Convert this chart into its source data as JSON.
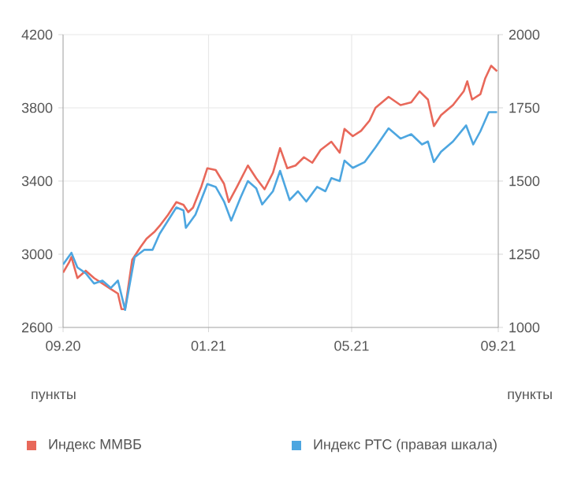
{
  "chart_data": {
    "type": "line",
    "ylabel": "пункты",
    "y2label": "пункты",
    "xlim": [
      "2020-09-01",
      "2021-09-01"
    ],
    "xticks": [
      {
        "value": "2020-09-01",
        "label": "09.20"
      },
      {
        "value": "2021-01-01",
        "label": "01.21"
      },
      {
        "value": "2021-05-01",
        "label": "05.21"
      },
      {
        "value": "2021-09-01",
        "label": "09.21"
      }
    ],
    "ylim": [
      2600,
      4200
    ],
    "yticks": [
      2600,
      3000,
      3400,
      3800,
      4200
    ],
    "y2lim": [
      1000,
      2000
    ],
    "y2ticks": [
      1000,
      1250,
      1500,
      1750,
      2000
    ],
    "grid": true,
    "legend": "bottom",
    "line_style": "solid",
    "marker": "none",
    "series": [
      {
        "name": "Индекс ММВБ",
        "color": "#e8685a",
        "x": [
          "2020-09-01",
          "2020-09-06",
          "2020-09-08",
          "2020-09-13",
          "2020-09-20",
          "2020-09-27",
          "2020-10-04",
          "2020-10-11",
          "2020-10-17",
          "2020-10-20",
          "2020-10-23",
          "2020-10-29",
          "2020-11-05",
          "2020-11-10",
          "2020-11-17",
          "2020-11-21",
          "2020-11-28",
          "2020-12-05",
          "2020-12-11",
          "2020-12-15",
          "2020-12-19",
          "2020-12-26",
          "2020-12-31",
          "2021-01-07",
          "2021-01-14",
          "2021-01-18",
          "2021-01-25",
          "2021-02-03",
          "2021-02-10",
          "2021-02-17",
          "2021-02-24",
          "2021-03-02",
          "2021-03-08",
          "2021-03-15",
          "2021-03-22",
          "2021-03-29",
          "2021-04-05",
          "2021-04-14",
          "2021-04-21",
          "2021-04-25",
          "2021-05-02",
          "2021-05-09",
          "2021-05-16",
          "2021-05-21",
          "2021-06-01",
          "2021-06-11",
          "2021-06-20",
          "2021-06-27",
          "2021-07-04",
          "2021-07-09",
          "2021-07-15",
          "2021-07-25",
          "2021-08-03",
          "2021-08-06",
          "2021-08-10",
          "2021-08-17",
          "2021-08-21",
          "2021-08-26",
          "2021-08-31"
        ],
        "values": [
          2900,
          2955,
          2985,
          2870,
          2910,
          2870,
          2840,
          2810,
          2785,
          2700,
          2700,
          2970,
          3040,
          3085,
          3125,
          3155,
          3215,
          3285,
          3270,
          3230,
          3255,
          3370,
          3470,
          3460,
          3385,
          3285,
          3370,
          3485,
          3415,
          3355,
          3445,
          3580,
          3470,
          3485,
          3530,
          3500,
          3570,
          3615,
          3555,
          3685,
          3645,
          3675,
          3730,
          3800,
          3860,
          3815,
          3830,
          3890,
          3845,
          3700,
          3760,
          3815,
          3890,
          3945,
          3845,
          3875,
          3960,
          4030,
          4000
        ]
      },
      {
        "name": "Индекс РТС (правая шкала)",
        "color": "#4da6e0",
        "axis": "y2",
        "x": [
          "2020-09-01",
          "2020-09-08",
          "2020-09-13",
          "2020-09-20",
          "2020-09-27",
          "2020-10-04",
          "2020-10-11",
          "2020-10-17",
          "2020-10-23",
          "2020-10-31",
          "2020-11-08",
          "2020-11-15",
          "2020-11-21",
          "2020-11-28",
          "2020-12-05",
          "2020-12-11",
          "2020-12-13",
          "2020-12-21",
          "2020-12-31",
          "2021-01-07",
          "2021-01-14",
          "2021-01-20",
          "2021-01-28",
          "2021-02-03",
          "2021-02-10",
          "2021-02-15",
          "2021-02-24",
          "2021-03-02",
          "2021-03-10",
          "2021-03-17",
          "2021-03-24",
          "2021-04-02",
          "2021-04-09",
          "2021-04-14",
          "2021-04-21",
          "2021-04-25",
          "2021-05-02",
          "2021-05-12",
          "2021-05-21",
          "2021-06-01",
          "2021-06-11",
          "2021-06-20",
          "2021-06-29",
          "2021-07-04",
          "2021-07-09",
          "2021-07-15",
          "2021-07-25",
          "2021-08-05",
          "2021-08-11",
          "2021-08-17",
          "2021-08-24",
          "2021-08-31"
        ],
        "values": [
          1215,
          1255,
          1205,
          1185,
          1150,
          1160,
          1135,
          1160,
          1060,
          1240,
          1265,
          1265,
          1320,
          1365,
          1410,
          1400,
          1340,
          1385,
          1490,
          1480,
          1430,
          1365,
          1445,
          1500,
          1475,
          1420,
          1465,
          1535,
          1435,
          1465,
          1430,
          1480,
          1465,
          1510,
          1500,
          1570,
          1545,
          1565,
          1615,
          1680,
          1645,
          1660,
          1625,
          1635,
          1565,
          1600,
          1635,
          1690,
          1625,
          1670,
          1735,
          1735
        ]
      }
    ]
  }
}
